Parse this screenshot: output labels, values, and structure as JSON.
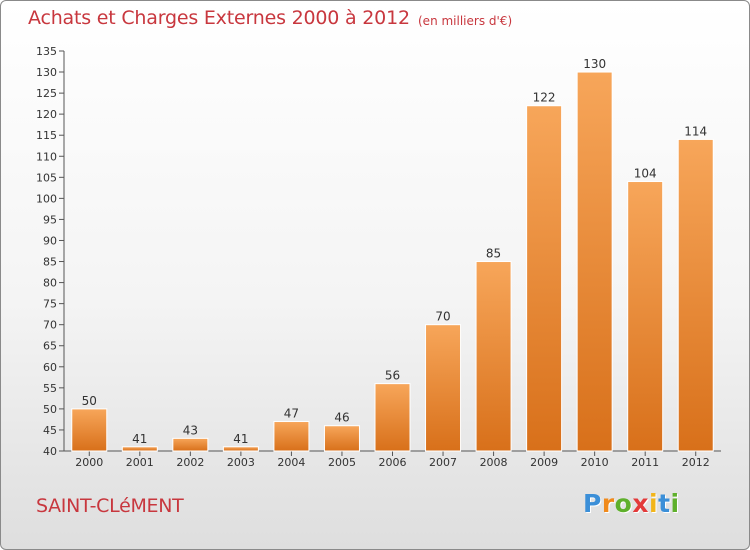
{
  "header": {
    "title": "Achats et Charges Externes 2000 à 2012",
    "subtitle": "(en milliers d'€)"
  },
  "footer": {
    "commune": "SAINT-CLéMENT",
    "logo": {
      "letters": [
        "P",
        "r",
        "o",
        "x",
        "i",
        "t",
        "i"
      ],
      "colors": [
        "#3b8fd8",
        "#f08a1c",
        "#5fb02c",
        "#e33a3a",
        "#f2b51a",
        "#3b8fd8",
        "#5fb02c"
      ]
    }
  },
  "chart_data": {
    "type": "bar",
    "title": "Achats et Charges Externes 2000 à 2012",
    "subtitle": "(en milliers d'€)",
    "categories": [
      "2000",
      "2001",
      "2002",
      "2003",
      "2004",
      "2005",
      "2006",
      "2007",
      "2008",
      "2009",
      "2010",
      "2011",
      "2012"
    ],
    "values": [
      50,
      41,
      43,
      41,
      47,
      46,
      56,
      70,
      85,
      122,
      130,
      104,
      114
    ],
    "ylim": [
      40,
      135
    ],
    "yticks": [
      40,
      45,
      50,
      55,
      60,
      65,
      70,
      75,
      80,
      85,
      90,
      95,
      100,
      105,
      110,
      115,
      120,
      125,
      130,
      135
    ],
    "grid": false,
    "legend": "none",
    "bar_color": "#e8822a",
    "bar_color_light": "#f7a65a",
    "bar_color_dark": "#d8701a"
  }
}
